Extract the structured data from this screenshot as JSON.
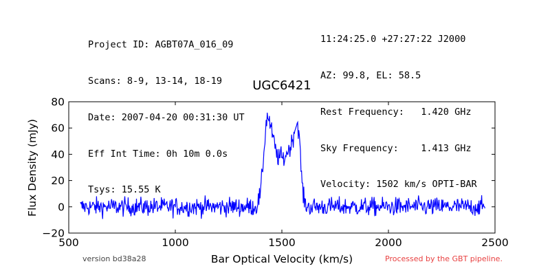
{
  "header": {
    "left_lines": [
      "Project ID: AGBT07A_016_09",
      "Scans: 8-9, 13-14, 18-19",
      "Date: 2007-04-20 00:31:30 UT",
      "Eff Int Time: 0h 10m 0.0s",
      "Tsys: 15.55 K"
    ],
    "right_lines": [
      "11:24:25.0 +27:27:22 J2000",
      "AZ: 99.8, EL: 58.5",
      "Rest Frequency:   1.420 GHz",
      "Sky Frequency:    1.413 GHz",
      "Velocity: 1502 km/s OPTI-BAR"
    ]
  },
  "footer": {
    "version": "version bd38a28",
    "processed": "Processed by the GBT pipeline."
  },
  "colors": {
    "line": "#0000ff",
    "processed_text": "#e84040"
  },
  "chart_data": {
    "type": "line",
    "title": "UGC6421",
    "xlabel": "Bar Optical Velocity (km/s)",
    "ylabel": "Flux Density (mJy)",
    "xlim": [
      500,
      2500
    ],
    "ylim": [
      -20,
      80
    ],
    "xticks": [
      500,
      1000,
      1500,
      2000,
      2500
    ],
    "yticks": [
      -20,
      0,
      20,
      40,
      60,
      80
    ],
    "grid": false,
    "legend": "none",
    "series": [
      {
        "x": [
          555,
          1380,
          1400,
          1415,
          1425,
          1432,
          1440,
          1448,
          1455,
          1465,
          1475,
          1485,
          1495,
          1505,
          1515,
          1525,
          1535,
          1545,
          1555,
          1565,
          1572,
          1580,
          1590,
          1600,
          1610,
          1620,
          2455
        ],
        "values": [
          0,
          0,
          10,
          40,
          62,
          70,
          66,
          60,
          55,
          48,
          40,
          37,
          39,
          36,
          38,
          42,
          44,
          48,
          55,
          62,
          64,
          58,
          30,
          8,
          2,
          0,
          0
        ],
        "noise_rms": 3.5
      }
    ]
  }
}
